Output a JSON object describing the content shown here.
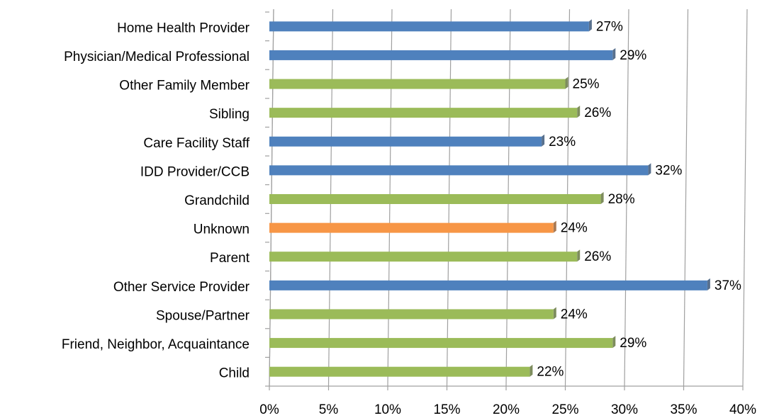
{
  "chart_data": {
    "type": "barh",
    "categories": [
      "Home Health Provider",
      "Physician/Medical Professional",
      "Other Family Member",
      "Sibling",
      "Care Facility Staff",
      "IDD Provider/CCB",
      "Grandchild",
      "Unknown",
      "Parent",
      "Other Service Provider",
      "Spouse/Partner",
      "Friend, Neighbor, Acquaintance",
      "Child"
    ],
    "values": [
      27,
      29,
      25,
      26,
      23,
      32,
      28,
      24,
      26,
      37,
      24,
      29,
      22
    ],
    "value_labels": [
      "27%",
      "29%",
      "25%",
      "26%",
      "23%",
      "32%",
      "28%",
      "24%",
      "26%",
      "37%",
      "24%",
      "29%",
      "22%"
    ],
    "colors": [
      "#4f81bd",
      "#4f81bd",
      "#9bbb59",
      "#9bbb59",
      "#4f81bd",
      "#4f81bd",
      "#9bbb59",
      "#f79646",
      "#9bbb59",
      "#4f81bd",
      "#9bbb59",
      "#9bbb59",
      "#9bbb59"
    ],
    "xlim": [
      0,
      40
    ],
    "xticks": [
      {
        "value": 0,
        "label": "0%"
      },
      {
        "value": 5,
        "label": "5%"
      },
      {
        "value": 10,
        "label": "10%"
      },
      {
        "value": 15,
        "label": "15%"
      },
      {
        "value": 20,
        "label": "20%"
      },
      {
        "value": 25,
        "label": "25%"
      },
      {
        "value": 30,
        "label": "30%"
      },
      {
        "value": 35,
        "label": "35%"
      },
      {
        "value": 40,
        "label": "40%"
      }
    ],
    "grid": true
  }
}
